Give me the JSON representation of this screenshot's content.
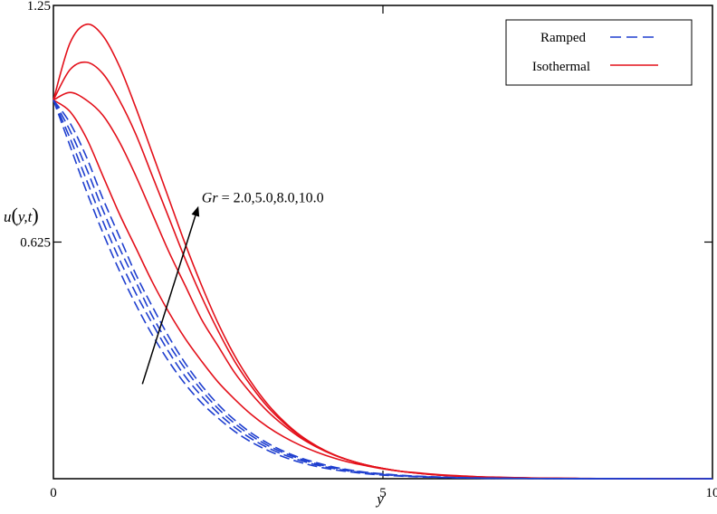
{
  "chart_data": {
    "type": "line",
    "title": "",
    "xlabel": "y",
    "ylabel": "u(y,t)",
    "xlim": [
      0,
      10
    ],
    "ylim": [
      0,
      1.25
    ],
    "x_ticks": [
      "0",
      "5",
      "10"
    ],
    "y_ticks": [
      "0.625",
      "1.25"
    ],
    "grid": false,
    "legend_position": "top-right",
    "legend": [
      {
        "label": "Ramped",
        "style": "dashed",
        "color": "#1f3fcf"
      },
      {
        "label": "Isothermal",
        "style": "solid",
        "color": "#e3101a"
      }
    ],
    "annotation": {
      "text_prefix": "Gr",
      "text_suffix": " = 2.0,5.0,8.0,10.0",
      "arrow_from": [
        1.35,
        0.25
      ],
      "arrow_to": [
        2.2,
        0.72
      ],
      "text_at": [
        2.25,
        0.73
      ]
    },
    "x": [
      0,
      0.25,
      0.5,
      0.75,
      1,
      1.25,
      1.5,
      1.75,
      2,
      2.25,
      2.5,
      2.75,
      3,
      3.25,
      3.5,
      3.75,
      4,
      4.25,
      4.5,
      4.75,
      5,
      5.25,
      5.5,
      5.75,
      6,
      6.25,
      6.5,
      6.75,
      7,
      7.25,
      7.5,
      7.75,
      8,
      8.25,
      8.5,
      8.75,
      9,
      9.25,
      9.5,
      9.75,
      10
    ],
    "series": [
      {
        "group": "Isothermal",
        "Gr": 2.0,
        "values": [
          1.0,
          0.97,
          0.9,
          0.8,
          0.7,
          0.61,
          0.52,
          0.44,
          0.37,
          0.31,
          0.255,
          0.21,
          0.17,
          0.137,
          0.11,
          0.088,
          0.07,
          0.055,
          0.043,
          0.034,
          0.026,
          0.02,
          0.016,
          0.012,
          0.009,
          0.007,
          0.005,
          0.004,
          0.003,
          0.002,
          0.0015,
          0.001,
          0.0008,
          0.0006,
          0.0004,
          0.0003,
          0.0002,
          0.0002,
          0.0001,
          0.0001,
          0.0
        ]
      },
      {
        "group": "Isothermal",
        "Gr": 5.0,
        "values": [
          1.0,
          1.02,
          1.0,
          0.96,
          0.89,
          0.8,
          0.7,
          0.6,
          0.51,
          0.42,
          0.35,
          0.28,
          0.225,
          0.178,
          0.14,
          0.108,
          0.083,
          0.063,
          0.048,
          0.036,
          0.027,
          0.02,
          0.015,
          0.011,
          0.008,
          0.006,
          0.0045,
          0.0032,
          0.0023,
          0.0017,
          0.0012,
          0.0009,
          0.0006,
          0.0005,
          0.0003,
          0.0002,
          0.0002,
          0.0001,
          0.0001,
          0.0,
          0.0
        ]
      },
      {
        "group": "Isothermal",
        "Gr": 8.0,
        "values": [
          1.0,
          1.08,
          1.1,
          1.07,
          1.0,
          0.91,
          0.8,
          0.69,
          0.58,
          0.48,
          0.39,
          0.31,
          0.245,
          0.19,
          0.147,
          0.112,
          0.085,
          0.064,
          0.048,
          0.036,
          0.027,
          0.02,
          0.015,
          0.011,
          0.008,
          0.006,
          0.0045,
          0.0032,
          0.0023,
          0.0017,
          0.0012,
          0.0009,
          0.0006,
          0.0005,
          0.0003,
          0.0002,
          0.0002,
          0.0001,
          0.0001,
          0.0,
          0.0
        ]
      },
      {
        "group": "Isothermal",
        "Gr": 10.0,
        "values": [
          1.0,
          1.15,
          1.2,
          1.17,
          1.09,
          0.98,
          0.86,
          0.74,
          0.62,
          0.51,
          0.41,
          0.325,
          0.255,
          0.197,
          0.151,
          0.114,
          0.086,
          0.064,
          0.048,
          0.036,
          0.027,
          0.02,
          0.015,
          0.011,
          0.008,
          0.006,
          0.0045,
          0.0032,
          0.0023,
          0.0017,
          0.0012,
          0.0009,
          0.0006,
          0.0005,
          0.0003,
          0.0002,
          0.0002,
          0.0001,
          0.0001,
          0.0,
          0.0
        ]
      },
      {
        "group": "Ramped",
        "Gr": 2.0,
        "values": [
          1.0,
          0.88,
          0.76,
          0.65,
          0.55,
          0.46,
          0.38,
          0.31,
          0.25,
          0.2,
          0.16,
          0.125,
          0.097,
          0.075,
          0.057,
          0.043,
          0.032,
          0.024,
          0.018,
          0.013,
          0.0095,
          0.007,
          0.005,
          0.0036,
          0.0026,
          0.0019,
          0.0013,
          0.0009,
          0.0007,
          0.0005,
          0.0003,
          0.0002,
          0.0002,
          0.0001,
          0.0001,
          0.0001,
          0.0,
          0.0,
          0.0,
          0.0,
          0.0
        ]
      },
      {
        "group": "Ramped",
        "Gr": 5.0,
        "values": [
          1.0,
          0.9,
          0.79,
          0.68,
          0.58,
          0.49,
          0.41,
          0.335,
          0.27,
          0.218,
          0.173,
          0.136,
          0.106,
          0.082,
          0.063,
          0.048,
          0.036,
          0.027,
          0.02,
          0.015,
          0.011,
          0.008,
          0.006,
          0.0042,
          0.003,
          0.0022,
          0.0015,
          0.0011,
          0.0008,
          0.0005,
          0.0004,
          0.0003,
          0.0002,
          0.0001,
          0.0001,
          0.0001,
          0.0,
          0.0,
          0.0,
          0.0,
          0.0
        ]
      },
      {
        "group": "Ramped",
        "Gr": 8.0,
        "values": [
          1.0,
          0.92,
          0.82,
          0.71,
          0.61,
          0.52,
          0.43,
          0.355,
          0.29,
          0.233,
          0.185,
          0.146,
          0.114,
          0.088,
          0.068,
          0.052,
          0.039,
          0.029,
          0.022,
          0.016,
          0.012,
          0.0088,
          0.0064,
          0.0046,
          0.0033,
          0.0024,
          0.0017,
          0.0012,
          0.0009,
          0.0006,
          0.0004,
          0.0003,
          0.0002,
          0.0002,
          0.0001,
          0.0001,
          0.0,
          0.0,
          0.0,
          0.0,
          0.0
        ]
      },
      {
        "group": "Ramped",
        "Gr": 10.0,
        "values": [
          1.0,
          0.94,
          0.85,
          0.74,
          0.64,
          0.54,
          0.455,
          0.375,
          0.305,
          0.246,
          0.196,
          0.155,
          0.121,
          0.094,
          0.072,
          0.055,
          0.042,
          0.031,
          0.023,
          0.017,
          0.0128,
          0.0094,
          0.0069,
          0.005,
          0.0036,
          0.0026,
          0.0018,
          0.0013,
          0.0009,
          0.0007,
          0.0005,
          0.0003,
          0.0002,
          0.0002,
          0.0001,
          0.0001,
          0.0,
          0.0,
          0.0,
          0.0,
          0.0
        ]
      }
    ]
  }
}
